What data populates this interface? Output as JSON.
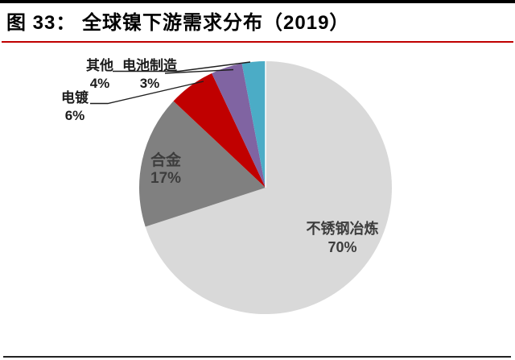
{
  "figure": {
    "title": "图 33： 全球镍下游需求分布（2019）"
  },
  "chart_data": {
    "type": "pie",
    "title": "全球镍下游需求分布（2019）",
    "unit": "percent",
    "direction": "clockwise",
    "start_angle_deg": 0,
    "legend": "none",
    "slices": [
      {
        "key": "stainless-steel-smelting",
        "label": "不锈钢冶炼",
        "value": 70,
        "pct_label": "70%",
        "color": "#d9d9d9",
        "label_placement": "inside"
      },
      {
        "key": "alloy",
        "label": "合金",
        "value": 17,
        "pct_label": "17%",
        "color": "#808080",
        "label_placement": "inside"
      },
      {
        "key": "electroplating",
        "label": "电镀",
        "value": 6,
        "pct_label": "6%",
        "color": "#c00000",
        "label_placement": "outside"
      },
      {
        "key": "other",
        "label": "其他",
        "value": 4,
        "pct_label": "4%",
        "color": "#8064a2",
        "label_placement": "outside"
      },
      {
        "key": "battery-manufacturing",
        "label": "电池制造",
        "value": 3,
        "pct_label": "3%",
        "color": "#4bacc6",
        "label_placement": "outside"
      }
    ],
    "colors": {
      "title_text": "#000000",
      "title_divider": "#c00000",
      "top_border": "#000000",
      "bottom_border": "#222222",
      "inside_label_text": "#3d3d3d",
      "outside_label_text": "#1c1c1c",
      "leader_line": "#1f1f1f"
    }
  }
}
